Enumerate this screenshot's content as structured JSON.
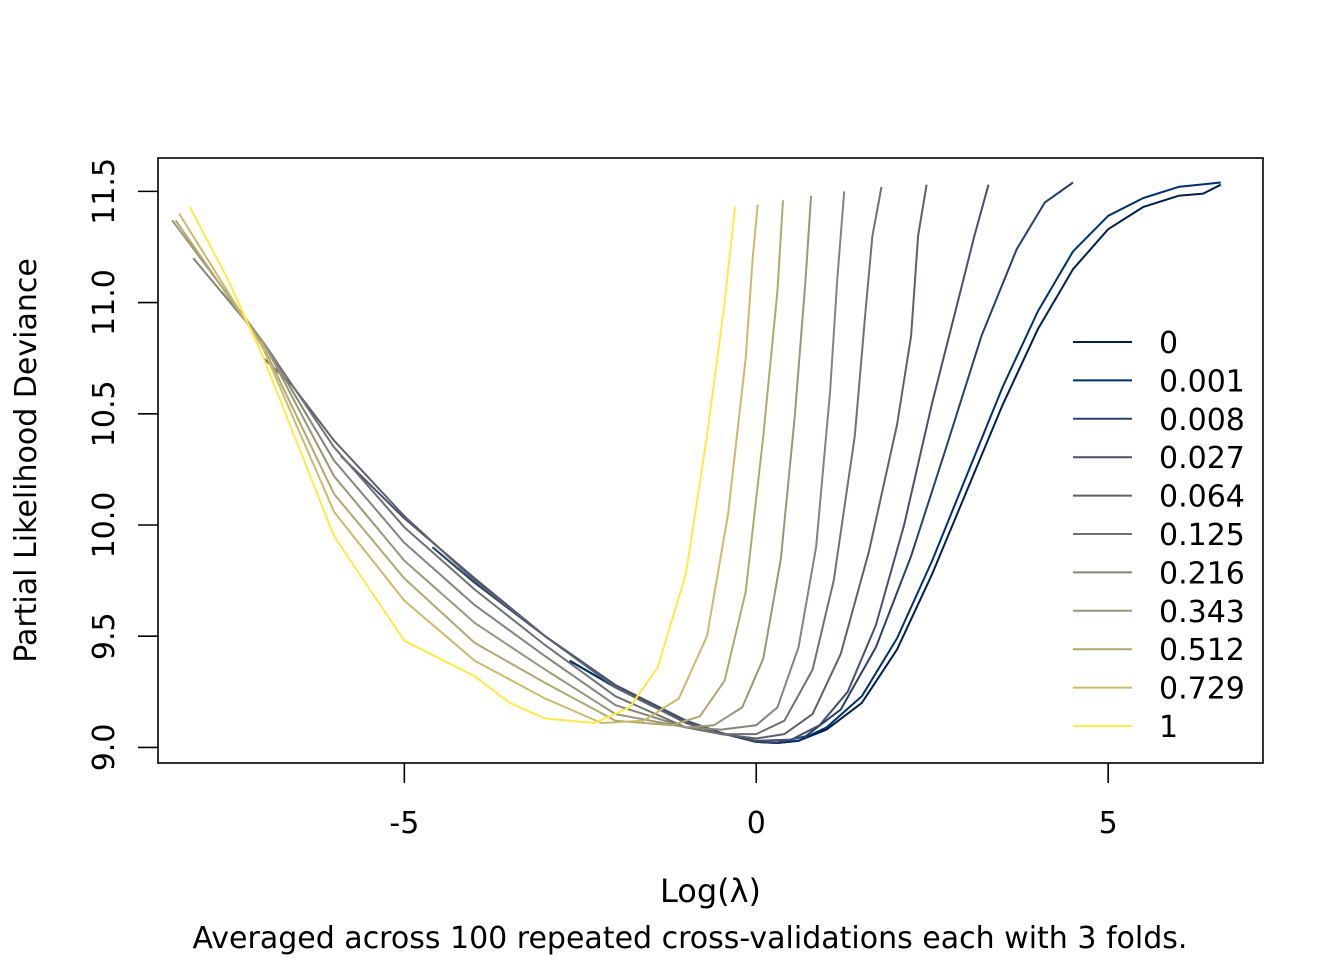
{
  "chart_data": {
    "type": "line",
    "xlabel": "Log(λ)",
    "ylabel": "Partial Likelihood Deviance",
    "caption": "Averaged across 100 repeated cross-validations each with 3 folds.",
    "xlim": [
      -8.5,
      7.2
    ],
    "ylim": [
      8.93,
      11.65
    ],
    "x_ticks": [
      -5,
      0,
      5
    ],
    "x_tick_labels": [
      "-5",
      "0",
      "5"
    ],
    "y_ticks": [
      9.0,
      9.5,
      10.0,
      10.5,
      11.0,
      11.5
    ],
    "y_tick_labels": [
      "9.0",
      "9.5",
      "10.0",
      "10.5",
      "11.0",
      "11.5"
    ],
    "grid": false,
    "legend_position": "right",
    "series": [
      {
        "name": "0",
        "color": "#00204D",
        "points": [
          [
            -2.65,
            9.39
          ],
          [
            -2.0,
            9.27
          ],
          [
            -1.5,
            9.19
          ],
          [
            -1.0,
            9.12
          ],
          [
            -0.5,
            9.065
          ],
          [
            0.0,
            9.025
          ],
          [
            0.3,
            9.02
          ],
          [
            0.6,
            9.03
          ],
          [
            1.0,
            9.08
          ],
          [
            1.5,
            9.2
          ],
          [
            2.0,
            9.44
          ],
          [
            2.5,
            9.78
          ],
          [
            3.0,
            10.16
          ],
          [
            3.5,
            10.54
          ],
          [
            4.0,
            10.88
          ],
          [
            4.5,
            11.15
          ],
          [
            5.0,
            11.33
          ],
          [
            5.5,
            11.43
          ],
          [
            6.0,
            11.48
          ],
          [
            6.35,
            11.49
          ],
          [
            6.6,
            11.53
          ]
        ]
      },
      {
        "name": "0.001",
        "color": "#00306F",
        "points": [
          [
            -2.65,
            9.39
          ],
          [
            -2.0,
            9.27
          ],
          [
            -1.5,
            9.19
          ],
          [
            -1.0,
            9.12
          ],
          [
            -0.5,
            9.065
          ],
          [
            0.0,
            9.025
          ],
          [
            0.3,
            9.02
          ],
          [
            0.6,
            9.03
          ],
          [
            1.0,
            9.09
          ],
          [
            1.5,
            9.23
          ],
          [
            2.0,
            9.49
          ],
          [
            2.5,
            9.84
          ],
          [
            3.0,
            10.23
          ],
          [
            3.5,
            10.62
          ],
          [
            4.0,
            10.96
          ],
          [
            4.5,
            11.23
          ],
          [
            5.0,
            11.39
          ],
          [
            5.5,
            11.47
          ],
          [
            6.0,
            11.52
          ],
          [
            6.6,
            11.54
          ]
        ]
      },
      {
        "name": "0.008",
        "color": "#2A406C",
        "points": [
          [
            -4.6,
            9.9
          ],
          [
            -4.0,
            9.74
          ],
          [
            -3.0,
            9.5
          ],
          [
            -2.0,
            9.28
          ],
          [
            -1.0,
            9.12
          ],
          [
            -0.5,
            9.065
          ],
          [
            0.0,
            9.025
          ],
          [
            0.3,
            9.022
          ],
          [
            0.7,
            9.05
          ],
          [
            1.2,
            9.17
          ],
          [
            1.7,
            9.45
          ],
          [
            2.2,
            9.86
          ],
          [
            2.7,
            10.35
          ],
          [
            3.2,
            10.85
          ],
          [
            3.7,
            11.24
          ],
          [
            4.1,
            11.45
          ],
          [
            4.5,
            11.54
          ]
        ]
      },
      {
        "name": "0.027",
        "color": "#48506C",
        "points": [
          [
            -5.9,
            10.31
          ],
          [
            -5.0,
            10.03
          ],
          [
            -4.0,
            9.76
          ],
          [
            -3.0,
            9.5
          ],
          [
            -2.0,
            9.28
          ],
          [
            -1.0,
            9.12
          ],
          [
            -0.5,
            9.065
          ],
          [
            0.0,
            9.03
          ],
          [
            0.5,
            9.035
          ],
          [
            0.9,
            9.1
          ],
          [
            1.3,
            9.25
          ],
          [
            1.7,
            9.55
          ],
          [
            2.1,
            10.0
          ],
          [
            2.5,
            10.55
          ],
          [
            2.9,
            11.05
          ],
          [
            3.1,
            11.3
          ],
          [
            3.3,
            11.53
          ]
        ]
      },
      {
        "name": "0.064",
        "color": "#5C616E",
        "points": [
          [
            -7.0,
            10.75
          ],
          [
            -6.6,
            10.63
          ],
          [
            -6.0,
            10.38
          ],
          [
            -5.0,
            10.04
          ],
          [
            -4.0,
            9.75
          ],
          [
            -3.0,
            9.5
          ],
          [
            -2.0,
            9.27
          ],
          [
            -1.0,
            9.11
          ],
          [
            -0.5,
            9.06
          ],
          [
            0.0,
            9.04
          ],
          [
            0.4,
            9.06
          ],
          [
            0.8,
            9.15
          ],
          [
            1.2,
            9.42
          ],
          [
            1.6,
            9.88
          ],
          [
            2.0,
            10.45
          ],
          [
            2.2,
            10.85
          ],
          [
            2.3,
            11.3
          ],
          [
            2.42,
            11.53
          ]
        ]
      },
      {
        "name": "0.125",
        "color": "#707173",
        "points": [
          [
            -7.6,
            11.05
          ],
          [
            -7.0,
            10.82
          ],
          [
            -6.0,
            10.35
          ],
          [
            -5.0,
            9.99
          ],
          [
            -4.0,
            9.71
          ],
          [
            -3.0,
            9.46
          ],
          [
            -2.0,
            9.23
          ],
          [
            -1.0,
            9.09
          ],
          [
            -0.5,
            9.06
          ],
          [
            0.0,
            9.06
          ],
          [
            0.4,
            9.12
          ],
          [
            0.8,
            9.35
          ],
          [
            1.1,
            9.75
          ],
          [
            1.4,
            10.4
          ],
          [
            1.55,
            10.95
          ],
          [
            1.65,
            11.3
          ],
          [
            1.78,
            11.52
          ]
        ]
      },
      {
        "name": "0.216",
        "color": "#858478",
        "points": [
          [
            -8.0,
            11.2
          ],
          [
            -7.0,
            10.82
          ],
          [
            -6.0,
            10.29
          ],
          [
            -5.0,
            9.92
          ],
          [
            -4.0,
            9.64
          ],
          [
            -3.0,
            9.41
          ],
          [
            -2.0,
            9.19
          ],
          [
            -1.0,
            9.09
          ],
          [
            -0.5,
            9.08
          ],
          [
            0.0,
            9.1
          ],
          [
            0.3,
            9.18
          ],
          [
            0.6,
            9.45
          ],
          [
            0.85,
            9.9
          ],
          [
            1.05,
            10.6
          ],
          [
            1.15,
            11.1
          ],
          [
            1.25,
            11.5
          ]
        ]
      },
      {
        "name": "0.343",
        "color": "#9A9677",
        "points": [
          [
            -8.3,
            11.37
          ],
          [
            -7.0,
            10.82
          ],
          [
            -6.0,
            10.22
          ],
          [
            -5.0,
            9.84
          ],
          [
            -4.0,
            9.56
          ],
          [
            -3.0,
            9.35
          ],
          [
            -2.0,
            9.15
          ],
          [
            -1.0,
            9.09
          ],
          [
            -0.6,
            9.1
          ],
          [
            -0.2,
            9.18
          ],
          [
            0.1,
            9.4
          ],
          [
            0.35,
            9.85
          ],
          [
            0.55,
            10.5
          ],
          [
            0.7,
            11.1
          ],
          [
            0.78,
            11.48
          ]
        ]
      },
      {
        "name": "0.512",
        "color": "#B1A870",
        "points": [
          [
            -8.25,
            11.37
          ],
          [
            -7.0,
            10.8
          ],
          [
            -6.0,
            10.14
          ],
          [
            -5.0,
            9.76
          ],
          [
            -4.0,
            9.47
          ],
          [
            -3.0,
            9.29
          ],
          [
            -2.0,
            9.12
          ],
          [
            -1.2,
            9.1
          ],
          [
            -0.8,
            9.14
          ],
          [
            -0.45,
            9.3
          ],
          [
            -0.15,
            9.7
          ],
          [
            0.1,
            10.4
          ],
          [
            0.3,
            11.05
          ],
          [
            0.38,
            11.46
          ]
        ]
      },
      {
        "name": "0.729",
        "color": "#CBBA69",
        "points": [
          [
            -8.2,
            11.4
          ],
          [
            -7.0,
            10.79
          ],
          [
            -6.0,
            10.06
          ],
          [
            -5.0,
            9.66
          ],
          [
            -4.0,
            9.39
          ],
          [
            -3.0,
            9.22
          ],
          [
            -2.2,
            9.11
          ],
          [
            -1.6,
            9.12
          ],
          [
            -1.1,
            9.22
          ],
          [
            -0.7,
            9.5
          ],
          [
            -0.4,
            10.05
          ],
          [
            -0.15,
            10.75
          ],
          [
            -0.05,
            11.2
          ],
          [
            0.02,
            11.44
          ]
        ]
      },
      {
        "name": "1",
        "color": "#FFEA46",
        "points": [
          [
            -8.05,
            11.43
          ],
          [
            -7.5,
            11.1
          ],
          [
            -7.0,
            10.75
          ],
          [
            -6.0,
            9.95
          ],
          [
            -5.0,
            9.48
          ],
          [
            -4.0,
            9.32
          ],
          [
            -3.5,
            9.2
          ],
          [
            -3.0,
            9.13
          ],
          [
            -2.3,
            9.11
          ],
          [
            -1.8,
            9.18
          ],
          [
            -1.4,
            9.36
          ],
          [
            -1.0,
            9.78
          ],
          [
            -0.7,
            10.4
          ],
          [
            -0.45,
            11.0
          ],
          [
            -0.3,
            11.43
          ]
        ]
      }
    ]
  }
}
